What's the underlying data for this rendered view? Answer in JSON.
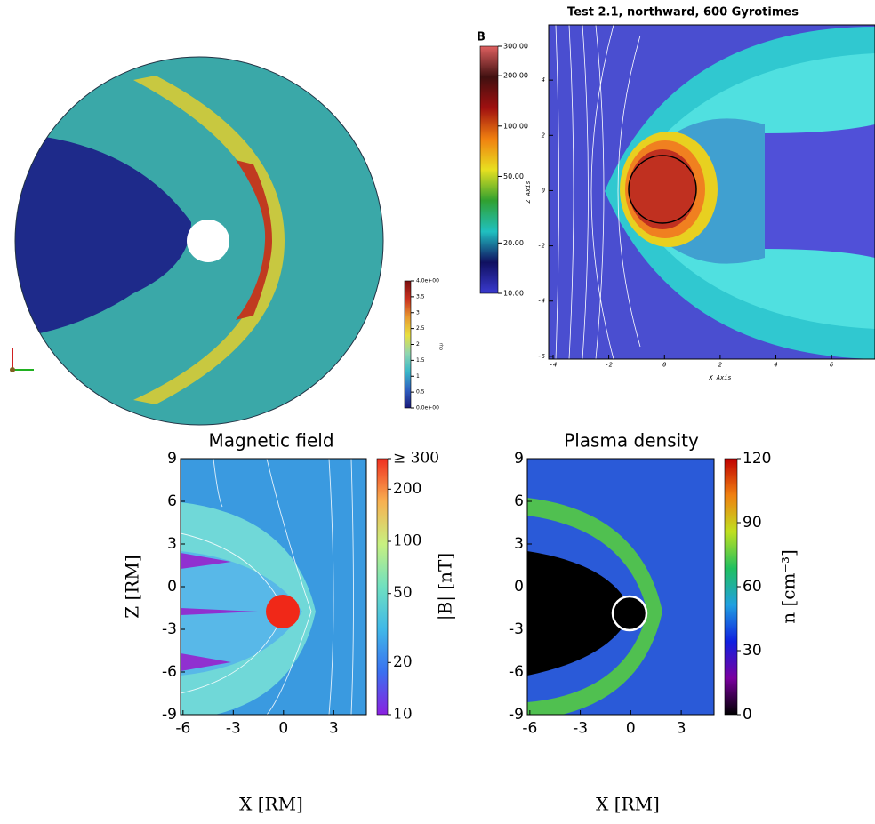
{
  "chart_data": [
    {
      "type": "field",
      "colorbar": {
        "label": "rho",
        "lim": [
          0,
          4
        ],
        "log": false,
        "colors": [
          "#1a1a7a",
          "#2f5fc0",
          "#39b8c8",
          "#8fd6b0",
          "#e8e040",
          "#e89a30",
          "#c83020",
          "#7a1010"
        ],
        "ticks": [
          {
            "value": 4,
            "label": "4.0e+00"
          },
          3.5,
          3,
          2.5,
          2,
          1.5,
          1,
          0.5,
          {
            "value": 0,
            "label": "0.0e+00"
          }
        ]
      }
    },
    {
      "type": "field",
      "title": "Test 2.1, northward, 600 Gyrotimes",
      "xlabel": "X Axis",
      "ylabel": "Z Axis",
      "xlim": [
        -4.16,
        7.56
      ],
      "ylim": [
        -6.1,
        6.0
      ],
      "xticks": [
        -4,
        -2,
        0,
        2,
        4,
        6
      ],
      "yticks": [
        -6,
        -4,
        -2,
        0,
        2,
        4
      ],
      "colorbar": {
        "label": "B",
        "lim": [
          10,
          300
        ],
        "log": true,
        "colors": [
          "#3a3ad0",
          "#101060",
          "#20c0c0",
          "#30a030",
          "#e8e020",
          "#f08010",
          "#a01010",
          "#401010",
          "#e06060"
        ],
        "ticks": [
          {
            "value": 300,
            "label": "300.00"
          },
          {
            "value": 200,
            "label": "200.00"
          },
          {
            "value": 100,
            "label": "100.00"
          },
          {
            "value": 50,
            "label": "50.00"
          },
          {
            "value": 20,
            "label": "20.00"
          },
          {
            "value": 10,
            "label": "10.00"
          }
        ]
      }
    },
    {
      "type": "field",
      "title": "Magnetic field",
      "xlabel": "X [RM]",
      "ylabel": "Z [RM]",
      "xlim": [
        -6.15,
        4.95
      ],
      "ylim": [
        -9,
        9
      ],
      "xticks": [
        -6,
        -3,
        0,
        3
      ],
      "yticks": [
        -9,
        -6,
        -3,
        0,
        3,
        6,
        9
      ],
      "colorbar": {
        "label": "|B| [nT]",
        "lim": [
          10,
          300
        ],
        "log": true,
        "colors": [
          "#8a20e0",
          "#3a70f0",
          "#40b8e8",
          "#70e0c0",
          "#c8f080",
          "#f8b050",
          "#f03020"
        ],
        "ticks": [
          10,
          20,
          50,
          100,
          200,
          {
            "value": 300,
            "label": "≥ 300"
          }
        ]
      }
    },
    {
      "type": "field",
      "title": "Plasma density",
      "xlabel": "X [RM]",
      "xlim": [
        -6.15,
        4.95
      ],
      "ylim": [
        -9,
        9
      ],
      "xticks": [
        -6,
        -3,
        0,
        3
      ],
      "yticks": [
        -9,
        -6,
        -3,
        0,
        3,
        6,
        9
      ],
      "colorbar": {
        "label": "n [cm⁻³]",
        "lim": [
          0,
          120
        ],
        "log": false,
        "colors": [
          "#000000",
          "#7a00a0",
          "#1020e0",
          "#20a0e0",
          "#20c060",
          "#c0e020",
          "#f08010",
          "#c00000"
        ],
        "ticks": [
          0,
          30,
          60,
          90,
          120
        ]
      }
    }
  ]
}
